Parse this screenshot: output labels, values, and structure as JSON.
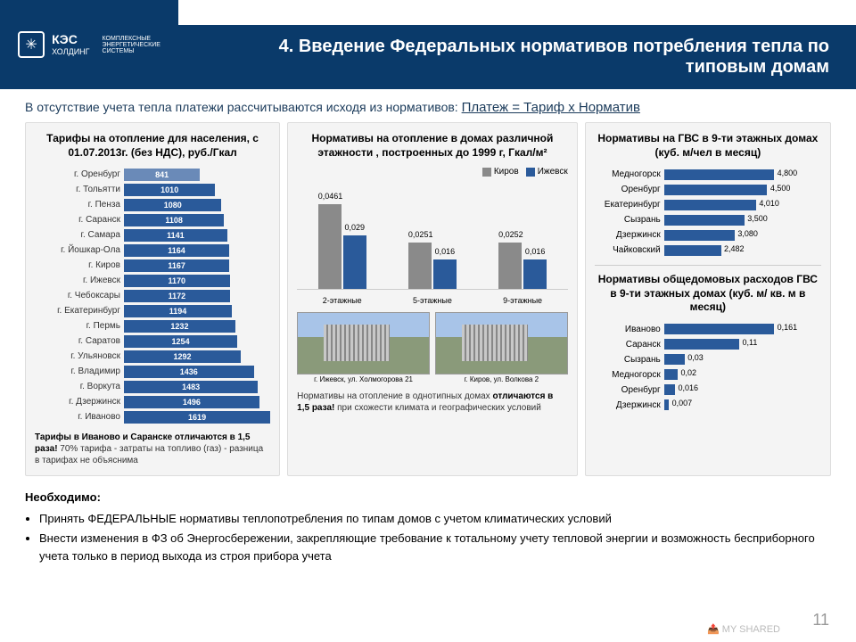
{
  "header": {
    "logo_main": "КЭС",
    "logo_sub": "ХОЛДИНГ",
    "logo_tag": "КОМПЛЕКСНЫЕ\nЭНЕРГЕТИЧЕСКИЕ\nСИСТЕМЫ",
    "title": "4. Введение Федеральных нормативов потребления тепла по типовым домам"
  },
  "subtitle_a": "В отсутствие учета тепла платежи рассчитываются исходя из нормативов: ",
  "subtitle_b": "Платеж = Тариф х Норматив",
  "tariff_chart": {
    "title": "Тарифы на отопление для населения, с 01.07.2013г. (без НДС), руб./Гкал",
    "max": 1619,
    "color": "#2a5a9a",
    "color_light": "#6a8ab8",
    "rows": [
      {
        "city": "г. Оренбург",
        "val": 841
      },
      {
        "city": "г. Тольятти",
        "val": 1010
      },
      {
        "city": "г. Пенза",
        "val": 1080
      },
      {
        "city": "г. Саранск",
        "val": 1108
      },
      {
        "city": "г. Самара",
        "val": 1141
      },
      {
        "city": "г. Йошкар-Ола",
        "val": 1164
      },
      {
        "city": "г. Киров",
        "val": 1167
      },
      {
        "city": "г. Ижевск",
        "val": 1170
      },
      {
        "city": "г. Чебоксары",
        "val": 1172
      },
      {
        "city": "г. Екатеринбург",
        "val": 1194
      },
      {
        "city": "г. Пермь",
        "val": 1232
      },
      {
        "city": "г. Саратов",
        "val": 1254
      },
      {
        "city": "г. Ульяновск",
        "val": 1292
      },
      {
        "city": "г. Владимир",
        "val": 1436
      },
      {
        "city": "г. Воркута",
        "val": 1483
      },
      {
        "city": "г. Дзержинск",
        "val": 1496
      },
      {
        "city": "г. Иваново",
        "val": 1619
      }
    ],
    "note_b": "Тарифы в Иваново и Саранске отличаются в 1,5 раза!",
    "note_r": " 70% тарифа - затраты на топливо (газ) - разница в тарифах не объяснима"
  },
  "norms_chart": {
    "title": "Нормативы на отопление в домах различной этажности , построенных до 1999 г, Гкал/м²",
    "legend": [
      {
        "name": "Киров",
        "color": "#8a8a8a"
      },
      {
        "name": "Ижевск",
        "color": "#2a5a9a"
      }
    ],
    "max": 0.0461,
    "groups": [
      {
        "label": "2-этажные",
        "a": 0.0461,
        "b": 0.029,
        "a_txt": "0,0461",
        "b_txt": "0,029"
      },
      {
        "label": "5-этажные",
        "a": 0.0251,
        "b": 0.016,
        "a_txt": "0,0251",
        "b_txt": "0,016"
      },
      {
        "label": "9-этажные",
        "a": 0.0252,
        "b": 0.016,
        "a_txt": "0,0252",
        "b_txt": "0,016"
      }
    ],
    "photo1_cap": "г. Ижевск, ул. Холмогорова 21",
    "photo2_cap": "г. Киров, ул. Волкова 2",
    "note_a": "Нормативы на отопление в однотипных домах ",
    "note_b": "отличаются в 1,5 раза!",
    "note_c": " при схожести климата и географических условий"
  },
  "gvs_chart": {
    "title": "Нормативы на ГВС в 9-ти этажных домах (куб. м/чел в месяц)",
    "max": 4.8,
    "color": "#2a5a9a",
    "rows": [
      {
        "city": "Медногорск",
        "val": 4.8,
        "txt": "4,800"
      },
      {
        "city": "Оренбург",
        "val": 4.5,
        "txt": "4,500"
      },
      {
        "city": "Екатеринбург",
        "val": 4.01,
        "txt": "4,010"
      },
      {
        "city": "Сызрань",
        "val": 3.5,
        "txt": "3,500"
      },
      {
        "city": "Дзержинск",
        "val": 3.08,
        "txt": "3,080"
      },
      {
        "city": "Чайковский",
        "val": 2.482,
        "txt": "2,482"
      }
    ]
  },
  "common_chart": {
    "title": "Нормативы общедомовых расходов ГВС в 9-ти этажных домах (куб. м/ кв. м в месяц)",
    "max": 0.161,
    "color": "#2a5a9a",
    "rows": [
      {
        "city": "Иваново",
        "val": 0.161,
        "txt": "0,161"
      },
      {
        "city": "Саранск",
        "val": 0.11,
        "txt": "0,11"
      },
      {
        "city": "Сызрань",
        "val": 0.03,
        "txt": "0,03"
      },
      {
        "city": "Медногорск",
        "val": 0.02,
        "txt": "0,02"
      },
      {
        "city": "Оренбург",
        "val": 0.016,
        "txt": "0,016"
      },
      {
        "city": "Дзержинск",
        "val": 0.007,
        "txt": "0,007"
      }
    ]
  },
  "footer": {
    "title": "Необходимо:",
    "items": [
      "Принять ФЕДЕРАЛЬНЫЕ нормативы теплопотребления по типам домов с учетом климатических условий",
      "Внести изменения в ФЗ об Энергосбережении, закрепляющие требование к тотальному учету тепловой энергии и возможность бесприборного учета только в период выхода из строя прибора учета"
    ]
  },
  "page": "11",
  "watermark": "MY SHARED"
}
